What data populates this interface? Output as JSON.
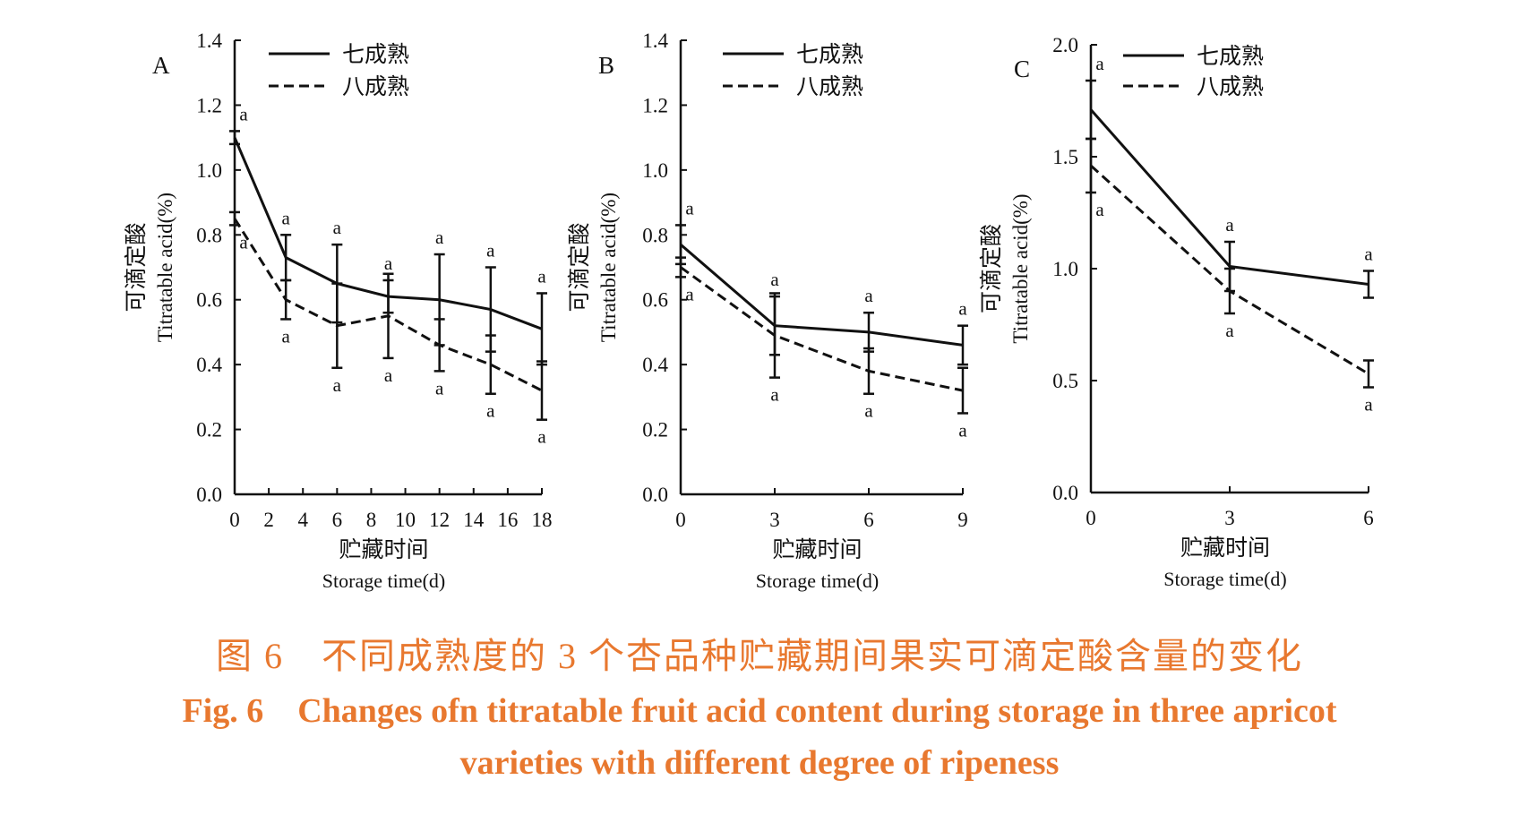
{
  "chart_data": [
    {
      "type": "line",
      "panel_label": "A",
      "ylabel_cn": "可滴定酸",
      "ylabel_en": "Titratable acid(%)",
      "xlabel_cn": "贮藏时间",
      "xlabel_en": "Storage time(d)",
      "ylim": [
        0,
        1.4
      ],
      "yticks": [
        "0.0",
        "0.2",
        "0.4",
        "0.6",
        "0.8",
        "1.0",
        "1.2",
        "1.4"
      ],
      "xlim": [
        0,
        18
      ],
      "xticks": [
        "0",
        "2",
        "4",
        "6",
        "8",
        "10",
        "12",
        "14",
        "16",
        "18"
      ],
      "x": [
        0,
        3,
        6,
        9,
        12,
        15,
        18
      ],
      "series": [
        {
          "name": "七成熟",
          "dash": "solid",
          "values": [
            1.1,
            0.73,
            0.65,
            0.61,
            0.6,
            0.57,
            0.51
          ],
          "err": [
            0.02,
            0.07,
            0.12,
            0.05,
            0.14,
            0.13,
            0.11
          ],
          "sig": [
            "a",
            "a",
            "a",
            "a",
            "a",
            "a",
            "a"
          ]
        },
        {
          "name": "八成熟",
          "dash": "dashed",
          "values": [
            0.85,
            0.6,
            0.52,
            0.55,
            0.46,
            0.4,
            0.32
          ],
          "err": [
            0.02,
            0.06,
            0.13,
            0.13,
            0.08,
            0.09,
            0.09
          ],
          "sig": [
            "a",
            "a",
            "a",
            "a",
            "a",
            "a",
            "a"
          ]
        }
      ]
    },
    {
      "type": "line",
      "panel_label": "B",
      "ylabel_cn": "可滴定酸",
      "ylabel_en": "Titratable acid(%)",
      "xlabel_cn": "贮藏时间",
      "xlabel_en": "Storage time(d)",
      "ylim": [
        0,
        1.4
      ],
      "yticks": [
        "0.0",
        "0.2",
        "0.4",
        "0.6",
        "0.8",
        "1.0",
        "1.2",
        "1.4"
      ],
      "xlim": [
        0,
        9
      ],
      "xticks": [
        "0",
        "3",
        "6",
        "9"
      ],
      "x": [
        0,
        3,
        6,
        9
      ],
      "series": [
        {
          "name": "七成熟",
          "dash": "solid",
          "values": [
            0.77,
            0.52,
            0.5,
            0.46
          ],
          "err": [
            0.06,
            0.09,
            0.06,
            0.06
          ],
          "sig": [
            "a",
            "a",
            "a",
            "a"
          ]
        },
        {
          "name": "八成熟",
          "dash": "dashed",
          "values": [
            0.7,
            0.49,
            0.38,
            0.32
          ],
          "err": [
            0.03,
            0.13,
            0.07,
            0.07
          ],
          "sig": [
            "a",
            "a",
            "a",
            "a"
          ]
        }
      ]
    },
    {
      "type": "line",
      "panel_label": "C",
      "ylabel_cn": "可滴定酸",
      "ylabel_en": "Titratable acid(%)",
      "xlabel_cn": "贮藏时间",
      "xlabel_en": "Storage time(d)",
      "ylim": [
        0,
        2.0
      ],
      "yticks": [
        "0.0",
        "0.5",
        "1.0",
        "1.5",
        "2.0"
      ],
      "xlim": [
        0,
        6
      ],
      "xticks": [
        "0",
        "3",
        "6"
      ],
      "x": [
        0,
        3,
        6
      ],
      "series": [
        {
          "name": "七成熟",
          "dash": "solid",
          "values": [
            1.71,
            1.01,
            0.93
          ],
          "err": [
            0.13,
            0.11,
            0.06
          ],
          "sig": [
            "a",
            "a",
            "a"
          ]
        },
        {
          "name": "八成熟",
          "dash": "dashed",
          "values": [
            1.46,
            0.9,
            0.53
          ],
          "err": [
            0.12,
            0.1,
            0.06
          ],
          "sig": [
            "a",
            "a",
            "a"
          ]
        }
      ]
    }
  ],
  "caption": {
    "cn": "图 6　不同成熟度的 3 个杏品种贮藏期间果实可滴定酸含量的变化",
    "en_line1": "Fig. 6　Changes ofn titratable fruit acid content during storage in three apricot",
    "en_line2": "varieties with different degree of ripeness"
  }
}
